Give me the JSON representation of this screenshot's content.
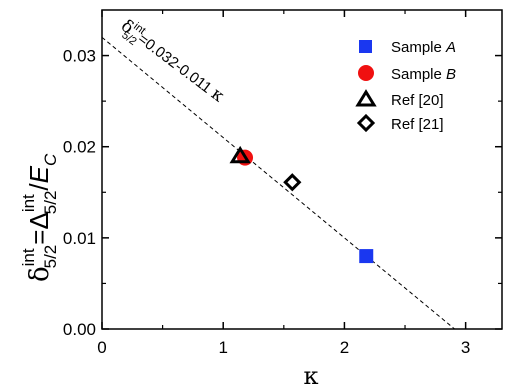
{
  "chart_data": {
    "type": "scatter",
    "xlabel": "κ",
    "ylabel": {
      "delta": "δ",
      "delta_sup": "int",
      "delta_sub": "5/2",
      "equals": "=",
      "Delta": "Δ",
      "Delta_sup": "int",
      "Delta_sub": "5/2",
      "slash": "/",
      "E": "E",
      "E_sub": "C"
    },
    "xlim": [
      0,
      3.3
    ],
    "ylim": [
      0,
      0.035
    ],
    "xticks": [
      0,
      1,
      2,
      3
    ],
    "xtick_labels": [
      "0",
      "1",
      "2",
      "3"
    ],
    "yticks": [
      0.0,
      0.01,
      0.02,
      0.03
    ],
    "ytick_labels": [
      "0.00",
      "0.01",
      "0.02",
      "0.03"
    ],
    "grid": false,
    "legend_position": "top-right",
    "series": [
      {
        "name": "Sample A",
        "name_base": "Sample ",
        "name_italic": "A",
        "marker": "square",
        "color": "#1a37f0",
        "filled": true,
        "points": [
          [
            2.18,
            0.008
          ]
        ]
      },
      {
        "name": "Sample B",
        "name_base": "Sample ",
        "name_italic": "B",
        "marker": "circle",
        "color": "#f01010",
        "filled": true,
        "points": [
          [
            1.18,
            0.0188
          ]
        ]
      },
      {
        "name": "Ref [20]",
        "name_base": "Ref [20]",
        "name_italic": "",
        "marker": "triangle",
        "color": "#000000",
        "filled": false,
        "points": [
          [
            1.14,
            0.0189
          ]
        ]
      },
      {
        "name": "Ref [21]",
        "name_base": "Ref [21]",
        "name_italic": "",
        "marker": "diamond",
        "color": "#000000",
        "filled": false,
        "points": [
          [
            1.57,
            0.0161
          ]
        ]
      }
    ],
    "fit_line": {
      "intercept": 0.032,
      "slope": -0.011,
      "style": "dashed",
      "label": {
        "delta": "δ",
        "sup": "int",
        "sub": "5/2",
        "rest": "=0.032-0.011 ",
        "kappa": "κ"
      }
    }
  }
}
